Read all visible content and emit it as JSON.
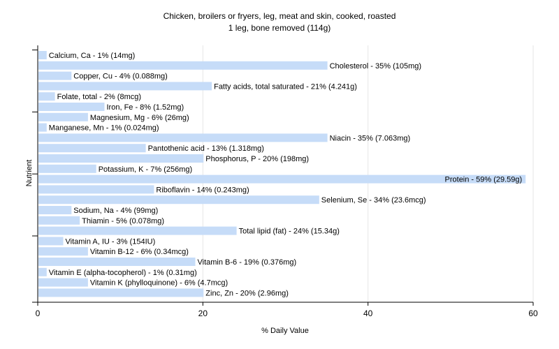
{
  "chart_data": {
    "type": "bar",
    "orientation": "horizontal",
    "title": "Chicken, broilers or fryers, leg, meat and skin, cooked, roasted",
    "subtitle": "1 leg, bone removed (114g)",
    "xlabel": "% Daily Value",
    "ylabel": "Nutrient",
    "xlim": [
      0,
      60
    ],
    "xticks": [
      0,
      20,
      40,
      60
    ],
    "grid": true,
    "bar_color": "#c6dcf8",
    "categories": [
      "Calcium, Ca",
      "Cholesterol",
      "Copper, Cu",
      "Fatty acids, total saturated",
      "Folate, total",
      "Iron, Fe",
      "Magnesium, Mg",
      "Manganese, Mn",
      "Niacin",
      "Pantothenic acid",
      "Phosphorus, P",
      "Potassium, K",
      "Protein",
      "Riboflavin",
      "Selenium, Se",
      "Sodium, Na",
      "Thiamin",
      "Total lipid (fat)",
      "Vitamin A, IU",
      "Vitamin B-12",
      "Vitamin B-6",
      "Vitamin E (alpha-tocopherol)",
      "Vitamin K (phylloquinone)",
      "Zinc, Zn"
    ],
    "values": [
      1,
      35,
      4,
      21,
      2,
      8,
      6,
      1,
      35,
      13,
      20,
      7,
      59,
      14,
      34,
      4,
      5,
      24,
      3,
      6,
      19,
      1,
      6,
      20
    ],
    "labels": [
      "Calcium, Ca - 1% (14mg)",
      "Cholesterol - 35% (105mg)",
      "Copper, Cu - 4% (0.088mg)",
      "Fatty acids, total saturated - 21% (4.241g)",
      "Folate, total - 2% (8mcg)",
      "Iron, Fe - 8% (1.52mg)",
      "Magnesium, Mg - 6% (26mg)",
      "Manganese, Mn - 1% (0.024mg)",
      "Niacin - 35% (7.063mg)",
      "Pantothenic acid - 13% (1.318mg)",
      "Phosphorus, P - 20% (198mg)",
      "Potassium, K - 7% (256mg)",
      "Protein - 59% (29.59g)",
      "Riboflavin - 14% (0.243mg)",
      "Selenium, Se - 34% (23.6mcg)",
      "Sodium, Na - 4% (99mg)",
      "Thiamin - 5% (0.078mg)",
      "Total lipid (fat) - 24% (15.34g)",
      "Vitamin A, IU - 3% (154IU)",
      "Vitamin B-12 - 6% (0.34mcg)",
      "Vitamin B-6 - 19% (0.376mg)",
      "Vitamin E (alpha-tocopherol) - 1% (0.31mg)",
      "Vitamin K (phylloquinone) - 6% (4.7mcg)",
      "Zinc, Zn - 20% (2.96mg)"
    ]
  }
}
